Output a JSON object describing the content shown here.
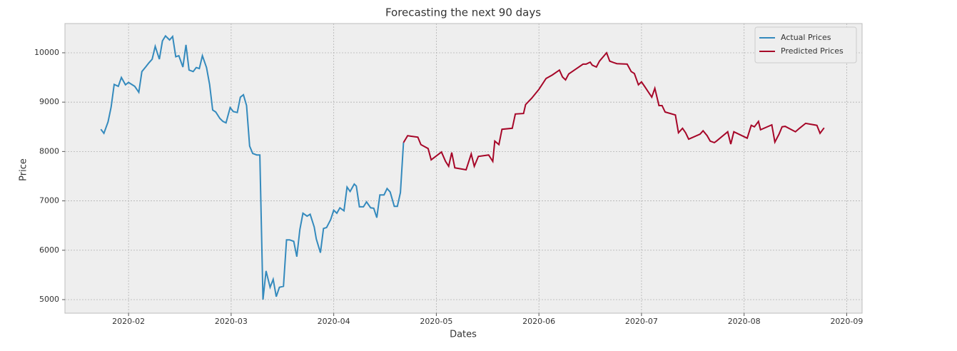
{
  "chart_data": {
    "type": "line",
    "title": "Forecasting the next 90 days",
    "xlabel": "Dates",
    "ylabel": "Price",
    "xlim": [
      1.38,
      9.15
    ],
    "xticks": [
      {
        "value": 2,
        "label": "2020-02"
      },
      {
        "value": 3,
        "label": "2020-03"
      },
      {
        "value": 4,
        "label": "2020-04"
      },
      {
        "value": 5,
        "label": "2020-05"
      },
      {
        "value": 6,
        "label": "2020-06"
      },
      {
        "value": 7,
        "label": "2020-07"
      },
      {
        "value": 8,
        "label": "2020-08"
      },
      {
        "value": 9,
        "label": "2020-09"
      }
    ],
    "ylim": [
      4725,
      10592
    ],
    "yticks": [
      5000,
      6000,
      7000,
      8000,
      9000,
      10000
    ],
    "grid": true,
    "legend": "upper right",
    "series": [
      {
        "name": "Actual Prices",
        "color": "#348abd",
        "x": [
          1.73,
          1.76,
          1.8,
          1.83,
          1.86,
          1.9,
          1.93,
          1.97,
          2.0,
          2.06,
          2.1,
          2.13,
          2.17,
          2.2,
          2.23,
          2.26,
          2.3,
          2.33,
          2.36,
          2.4,
          2.43,
          2.46,
          2.49,
          2.53,
          2.56,
          2.59,
          2.63,
          2.66,
          2.69,
          2.72,
          2.76,
          2.79,
          2.82,
          2.85,
          2.89,
          2.92,
          2.95,
          2.99,
          3.02,
          3.06,
          3.09,
          3.12,
          3.15,
          3.18,
          3.21,
          3.25,
          3.28,
          3.31,
          3.34,
          3.38,
          3.41,
          3.44,
          3.47,
          3.51,
          3.54,
          3.57,
          3.61,
          3.64,
          3.67,
          3.7,
          3.74,
          3.77,
          3.81,
          3.83,
          3.87,
          3.9,
          3.93,
          3.97,
          4.0,
          4.03,
          4.06,
          4.1,
          4.13,
          4.16,
          4.2,
          4.22,
          4.25,
          4.29,
          4.32,
          4.36,
          4.39,
          4.42,
          4.45,
          4.49,
          4.52,
          4.55,
          4.59,
          4.62,
          4.65,
          4.68
        ],
        "values": [
          8450,
          8370,
          8600,
          8900,
          9360,
          9320,
          9500,
          9350,
          9400,
          9320,
          9200,
          9620,
          9720,
          9800,
          9870,
          10130,
          9870,
          10240,
          10340,
          10260,
          10330,
          9920,
          9940,
          9710,
          10160,
          9650,
          9620,
          9700,
          9680,
          9940,
          9700,
          9360,
          8840,
          8800,
          8670,
          8610,
          8580,
          8890,
          8810,
          8790,
          9100,
          9150,
          8930,
          8110,
          7960,
          7930,
          7930,
          5000,
          5580,
          5250,
          5410,
          5060,
          5250,
          5270,
          6210,
          6210,
          6180,
          5870,
          6420,
          6750,
          6690,
          6730,
          6470,
          6230,
          5950,
          6440,
          6460,
          6620,
          6810,
          6750,
          6860,
          6800,
          7280,
          7190,
          7340,
          7300,
          6880,
          6880,
          6980,
          6860,
          6850,
          6660,
          7120,
          7120,
          7250,
          7180,
          6890,
          6890,
          7170,
          8180
        ]
      },
      {
        "name": "Predicted Prices",
        "color": "#a60628",
        "x": [
          4.68,
          4.72,
          4.75,
          4.82,
          4.85,
          4.92,
          4.95,
          5.05,
          5.09,
          5.12,
          5.15,
          5.18,
          5.29,
          5.34,
          5.37,
          5.41,
          5.51,
          5.55,
          5.57,
          5.61,
          5.64,
          5.74,
          5.77,
          5.85,
          5.87,
          5.93,
          6.0,
          6.07,
          6.13,
          6.2,
          6.23,
          6.26,
          6.29,
          6.36,
          6.43,
          6.46,
          6.5,
          6.52,
          6.56,
          6.59,
          6.66,
          6.69,
          6.73,
          6.76,
          6.86,
          6.9,
          6.93,
          6.97,
          7.0,
          7.03,
          7.1,
          7.13,
          7.17,
          7.2,
          7.23,
          7.33,
          7.36,
          7.4,
          7.43,
          7.46,
          7.57,
          7.6,
          7.64,
          7.67,
          7.71,
          7.73,
          7.84,
          7.87,
          7.9,
          8.03,
          8.07,
          8.1,
          8.14,
          8.16,
          8.27,
          8.3,
          8.34,
          8.37,
          8.4,
          8.5,
          8.54,
          8.6,
          8.71,
          8.74,
          8.78
        ],
        "values": [
          8180,
          8320,
          8310,
          8290,
          8140,
          8060,
          7830,
          7990,
          7800,
          7700,
          7980,
          7670,
          7630,
          7950,
          7700,
          7900,
          7930,
          7800,
          8210,
          8140,
          8450,
          8470,
          8760,
          8770,
          8950,
          9080,
          9260,
          9480,
          9550,
          9650,
          9510,
          9450,
          9570,
          9670,
          9770,
          9770,
          9810,
          9750,
          9710,
          9830,
          10000,
          9830,
          9800,
          9780,
          9770,
          9620,
          9580,
          9350,
          9410,
          9320,
          9100,
          9280,
          8930,
          8930,
          8800,
          8740,
          8380,
          8470,
          8380,
          8250,
          8350,
          8420,
          8320,
          8210,
          8180,
          8210,
          8400,
          8150,
          8400,
          8270,
          8530,
          8500,
          8610,
          8440,
          8540,
          8190,
          8350,
          8500,
          8510,
          8400,
          8470,
          8570,
          8530,
          8370,
          8480
        ]
      }
    ]
  }
}
